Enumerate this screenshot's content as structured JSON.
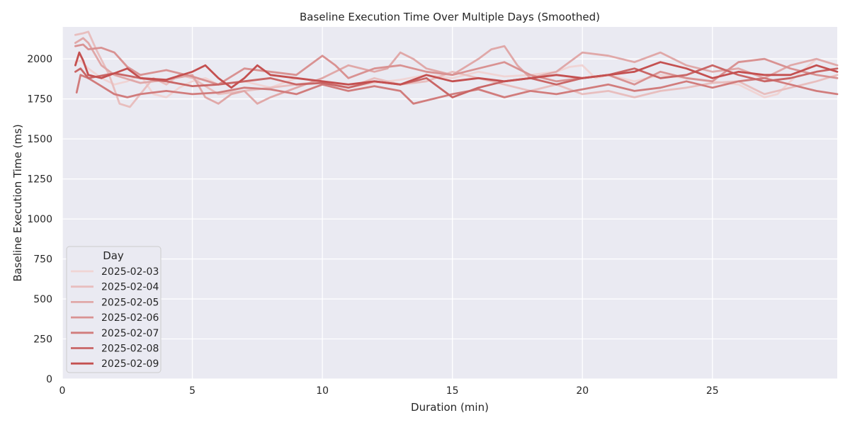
{
  "chart_data": {
    "type": "line",
    "title": "Baseline Execution Time Over Multiple Days (Smoothed)",
    "xlabel": "Duration (min)",
    "ylabel": "Baseline Execution Time (ms)",
    "xlim": [
      0,
      29.8
    ],
    "ylim": [
      0,
      2200
    ],
    "xticks": [
      0,
      5,
      10,
      15,
      20,
      25
    ],
    "yticks": [
      0,
      250,
      500,
      750,
      1000,
      1250,
      1500,
      1750,
      2000
    ],
    "grid": true,
    "background": "#eaeaf2",
    "legend": {
      "title": "Day",
      "position": "lower-left"
    },
    "series": [
      {
        "name": "2025-02-03",
        "color": "#f0d4d4",
        "points": [
          [
            0.5,
            1980
          ],
          [
            0.7,
            1990
          ],
          [
            1.0,
            1940
          ],
          [
            1.5,
            1880
          ],
          [
            2.0,
            1840
          ],
          [
            2.5,
            1860
          ],
          [
            3.0,
            1900
          ],
          [
            3.5,
            1780
          ],
          [
            4.0,
            1760
          ],
          [
            4.5,
            1820
          ],
          [
            5.0,
            1860
          ],
          [
            5.5,
            1880
          ],
          [
            6.0,
            1840
          ],
          [
            7.0,
            1860
          ],
          [
            8.0,
            1820
          ],
          [
            9.0,
            1880
          ],
          [
            10.0,
            1860
          ],
          [
            11.0,
            1820
          ],
          [
            12.0,
            1850
          ],
          [
            13.0,
            1870
          ],
          [
            14.0,
            1900
          ],
          [
            15.0,
            1880
          ],
          [
            16.0,
            1920
          ],
          [
            17.0,
            1890
          ],
          [
            18.0,
            1900
          ],
          [
            19.0,
            1920
          ],
          [
            19.5,
            1950
          ],
          [
            20.0,
            1960
          ],
          [
            20.5,
            1880
          ],
          [
            21.0,
            1900
          ],
          [
            22.0,
            1860
          ],
          [
            23.0,
            1900
          ],
          [
            24.0,
            1880
          ],
          [
            25.0,
            1860
          ],
          [
            26.0,
            1840
          ],
          [
            27.0,
            1760
          ],
          [
            27.5,
            1780
          ],
          [
            28.0,
            1860
          ],
          [
            29.0,
            2000
          ],
          [
            29.8,
            1960
          ]
        ]
      },
      {
        "name": "2025-02-04",
        "color": "#e8bebe",
        "points": [
          [
            0.5,
            2150
          ],
          [
            0.8,
            2160
          ],
          [
            1.0,
            2170
          ],
          [
            1.3,
            2060
          ],
          [
            1.8,
            1900
          ],
          [
            2.2,
            1720
          ],
          [
            2.6,
            1700
          ],
          [
            3.0,
            1780
          ],
          [
            3.5,
            1880
          ],
          [
            4.0,
            1840
          ],
          [
            4.5,
            1900
          ],
          [
            5.0,
            1880
          ],
          [
            6.0,
            1780
          ],
          [
            7.0,
            1800
          ],
          [
            8.0,
            1820
          ],
          [
            9.0,
            1840
          ],
          [
            10.0,
            1860
          ],
          [
            11.0,
            1820
          ],
          [
            12.0,
            1880
          ],
          [
            13.0,
            1840
          ],
          [
            14.0,
            1860
          ],
          [
            15.0,
            1920
          ],
          [
            16.0,
            1880
          ],
          [
            17.0,
            1840
          ],
          [
            18.0,
            1800
          ],
          [
            19.0,
            1840
          ],
          [
            20.0,
            1780
          ],
          [
            21.0,
            1800
          ],
          [
            22.0,
            1760
          ],
          [
            23.0,
            1800
          ],
          [
            24.0,
            1820
          ],
          [
            25.0,
            1850
          ],
          [
            26.0,
            1860
          ],
          [
            27.0,
            1780
          ],
          [
            28.0,
            1820
          ],
          [
            29.0,
            1860
          ],
          [
            29.8,
            1900
          ]
        ]
      },
      {
        "name": "2025-02-05",
        "color": "#e0a8a8",
        "points": [
          [
            0.5,
            2100
          ],
          [
            0.8,
            2130
          ],
          [
            1.0,
            2100
          ],
          [
            1.5,
            1960
          ],
          [
            2.0,
            1900
          ],
          [
            3.0,
            1850
          ],
          [
            4.0,
            1870
          ],
          [
            5.0,
            1900
          ],
          [
            5.5,
            1760
          ],
          [
            6.0,
            1720
          ],
          [
            6.5,
            1780
          ],
          [
            7.0,
            1800
          ],
          [
            7.5,
            1720
          ],
          [
            8.0,
            1760
          ],
          [
            9.0,
            1820
          ],
          [
            10.0,
            1880
          ],
          [
            11.0,
            1960
          ],
          [
            12.0,
            1920
          ],
          [
            12.5,
            1940
          ],
          [
            13.0,
            2040
          ],
          [
            13.5,
            2000
          ],
          [
            14.0,
            1940
          ],
          [
            15.0,
            1900
          ],
          [
            16.0,
            2000
          ],
          [
            16.5,
            2060
          ],
          [
            17.0,
            2080
          ],
          [
            17.5,
            1960
          ],
          [
            18.0,
            1880
          ],
          [
            19.0,
            1920
          ],
          [
            20.0,
            2040
          ],
          [
            21.0,
            2020
          ],
          [
            22.0,
            1980
          ],
          [
            23.0,
            2040
          ],
          [
            24.0,
            1960
          ],
          [
            25.0,
            1920
          ],
          [
            26.0,
            1940
          ],
          [
            27.0,
            1880
          ],
          [
            28.0,
            1960
          ],
          [
            29.0,
            2000
          ],
          [
            29.8,
            1960
          ]
        ]
      },
      {
        "name": "2025-02-06",
        "color": "#d99292",
        "points": [
          [
            0.5,
            2080
          ],
          [
            0.8,
            2090
          ],
          [
            1.0,
            2060
          ],
          [
            1.5,
            2070
          ],
          [
            2.0,
            2040
          ],
          [
            2.5,
            1950
          ],
          [
            3.0,
            1900
          ],
          [
            4.0,
            1930
          ],
          [
            5.0,
            1890
          ],
          [
            6.0,
            1840
          ],
          [
            7.0,
            1940
          ],
          [
            8.0,
            1920
          ],
          [
            9.0,
            1900
          ],
          [
            10.0,
            2020
          ],
          [
            10.5,
            1960
          ],
          [
            11.0,
            1880
          ],
          [
            12.0,
            1940
          ],
          [
            13.0,
            1960
          ],
          [
            14.0,
            1920
          ],
          [
            15.0,
            1900
          ],
          [
            16.0,
            1940
          ],
          [
            17.0,
            1980
          ],
          [
            18.0,
            1900
          ],
          [
            19.0,
            1860
          ],
          [
            20.0,
            1880
          ],
          [
            21.0,
            1900
          ],
          [
            22.0,
            1840
          ],
          [
            23.0,
            1920
          ],
          [
            24.0,
            1880
          ],
          [
            25.0,
            1860
          ],
          [
            26.0,
            1980
          ],
          [
            27.0,
            2000
          ],
          [
            28.0,
            1940
          ],
          [
            29.0,
            1900
          ],
          [
            29.8,
            1880
          ]
        ]
      },
      {
        "name": "2025-02-07",
        "color": "#d17c7c",
        "points": [
          [
            0.55,
            1790
          ],
          [
            0.7,
            1900
          ],
          [
            1.0,
            1880
          ],
          [
            1.5,
            1830
          ],
          [
            2.0,
            1780
          ],
          [
            2.5,
            1760
          ],
          [
            3.0,
            1780
          ],
          [
            4.0,
            1800
          ],
          [
            5.0,
            1780
          ],
          [
            6.0,
            1790
          ],
          [
            7.0,
            1820
          ],
          [
            8.0,
            1810
          ],
          [
            9.0,
            1780
          ],
          [
            10.0,
            1840
          ],
          [
            11.0,
            1800
          ],
          [
            12.0,
            1830
          ],
          [
            13.0,
            1800
          ],
          [
            13.5,
            1720
          ],
          [
            14.0,
            1740
          ],
          [
            15.0,
            1780
          ],
          [
            16.0,
            1810
          ],
          [
            17.0,
            1760
          ],
          [
            18.0,
            1800
          ],
          [
            19.0,
            1780
          ],
          [
            20.0,
            1810
          ],
          [
            21.0,
            1840
          ],
          [
            22.0,
            1800
          ],
          [
            23.0,
            1820
          ],
          [
            24.0,
            1860
          ],
          [
            25.0,
            1820
          ],
          [
            26.0,
            1860
          ],
          [
            27.0,
            1880
          ],
          [
            28.0,
            1840
          ],
          [
            29.0,
            1800
          ],
          [
            29.8,
            1780
          ]
        ]
      },
      {
        "name": "2025-02-08",
        "color": "#c96666",
        "points": [
          [
            0.5,
            1920
          ],
          [
            0.7,
            1940
          ],
          [
            1.0,
            1880
          ],
          [
            2.0,
            1910
          ],
          [
            3.0,
            1880
          ],
          [
            4.0,
            1860
          ],
          [
            5.0,
            1830
          ],
          [
            6.0,
            1840
          ],
          [
            7.0,
            1860
          ],
          [
            8.0,
            1880
          ],
          [
            9.0,
            1840
          ],
          [
            10.0,
            1850
          ],
          [
            11.0,
            1820
          ],
          [
            12.0,
            1860
          ],
          [
            13.0,
            1840
          ],
          [
            14.0,
            1880
          ],
          [
            15.0,
            1760
          ],
          [
            16.0,
            1820
          ],
          [
            17.0,
            1860
          ],
          [
            18.0,
            1880
          ],
          [
            19.0,
            1840
          ],
          [
            20.0,
            1880
          ],
          [
            21.0,
            1900
          ],
          [
            22.0,
            1940
          ],
          [
            23.0,
            1880
          ],
          [
            24.0,
            1900
          ],
          [
            25.0,
            1960
          ],
          [
            26.0,
            1900
          ],
          [
            27.0,
            1860
          ],
          [
            28.0,
            1880
          ],
          [
            29.0,
            1920
          ],
          [
            29.8,
            1940
          ]
        ]
      },
      {
        "name": "2025-02-09",
        "color": "#c45050",
        "points": [
          [
            0.5,
            1960
          ],
          [
            0.65,
            2040
          ],
          [
            0.8,
            1990
          ],
          [
            1.0,
            1900
          ],
          [
            1.5,
            1880
          ],
          [
            2.0,
            1910
          ],
          [
            2.5,
            1940
          ],
          [
            3.0,
            1880
          ],
          [
            4.0,
            1870
          ],
          [
            5.0,
            1920
          ],
          [
            5.5,
            1960
          ],
          [
            6.0,
            1880
          ],
          [
            6.5,
            1820
          ],
          [
            7.0,
            1880
          ],
          [
            7.5,
            1960
          ],
          [
            8.0,
            1900
          ],
          [
            9.0,
            1880
          ],
          [
            10.0,
            1860
          ],
          [
            11.0,
            1840
          ],
          [
            12.0,
            1860
          ],
          [
            13.0,
            1840
          ],
          [
            14.0,
            1900
          ],
          [
            15.0,
            1860
          ],
          [
            16.0,
            1880
          ],
          [
            17.0,
            1860
          ],
          [
            18.0,
            1880
          ],
          [
            19.0,
            1900
          ],
          [
            20.0,
            1880
          ],
          [
            21.0,
            1900
          ],
          [
            22.0,
            1920
          ],
          [
            23.0,
            1980
          ],
          [
            24.0,
            1940
          ],
          [
            25.0,
            1880
          ],
          [
            26.0,
            1920
          ],
          [
            27.0,
            1900
          ],
          [
            28.0,
            1900
          ],
          [
            29.0,
            1960
          ],
          [
            29.8,
            1920
          ]
        ]
      }
    ]
  }
}
